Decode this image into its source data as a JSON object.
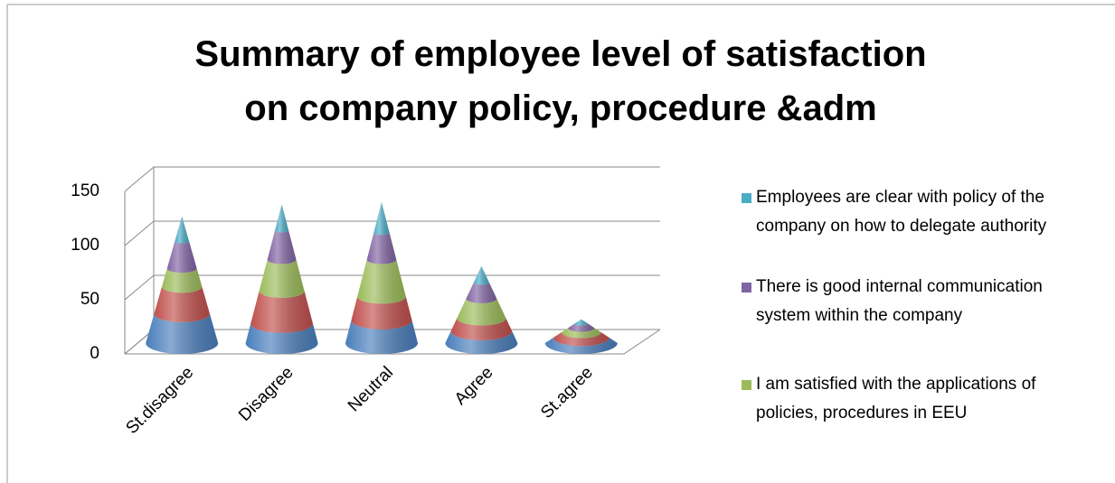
{
  "chart_data": {
    "type": "cone3d",
    "title": "Summary of employee level of satisfaction on company policy, procedure &adm",
    "categories": [
      "St.disagree",
      "Disagree",
      "Neutral",
      "Agree",
      "St.agree"
    ],
    "series": [
      {
        "color": "#4a7ebb",
        "values": [
          27,
          18,
          21,
          11,
          5
        ]
      },
      {
        "color": "#c0504d",
        "values": [
          25,
          30,
          22,
          12,
          5
        ]
      },
      {
        "name": "I am satisfied with the applications of policies, procedures in EEU",
        "color": "#9bbb59",
        "values": [
          17,
          29,
          34,
          18,
          4
        ]
      },
      {
        "name": "There is good internal communication system within the company",
        "color": "#8064a2",
        "values": [
          25,
          27,
          25,
          15,
          4
        ]
      },
      {
        "name": "Employees are clear with policy of the company on how  to delegate authority",
        "color": "#4bacc6",
        "values": [
          23,
          24,
          28,
          15,
          4
        ]
      }
    ],
    "ylim": [
      0,
      150
    ],
    "yticks": [
      0,
      50,
      100,
      150
    ],
    "grid": true
  }
}
